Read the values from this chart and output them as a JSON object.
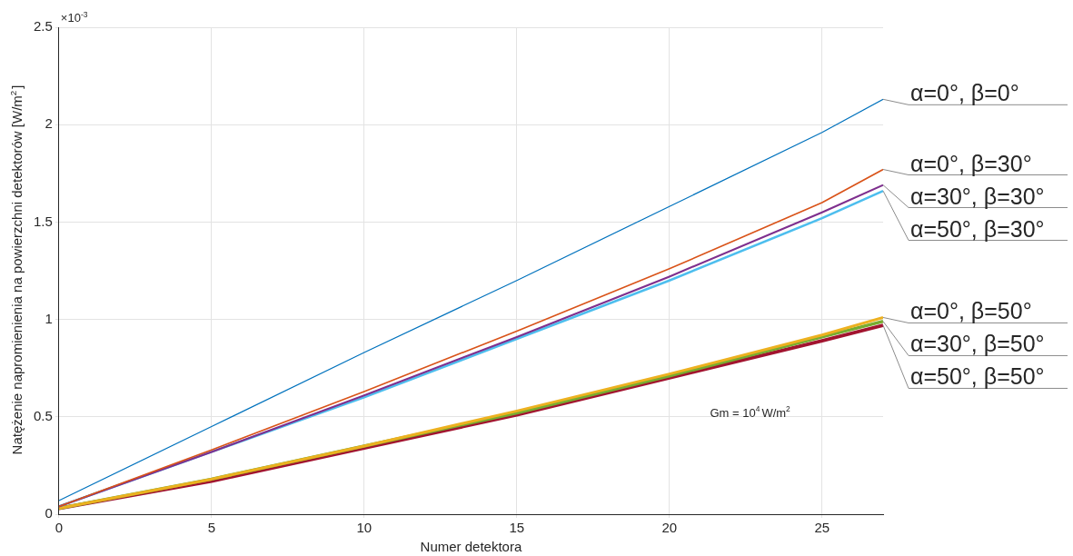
{
  "chart_data": {
    "type": "line",
    "xlabel": "Numer detektora",
    "ylabel": "Natężenie napromienienia na powierzchni detektorów [W/m$^{2}$]",
    "annotations": [
      "×10$^{-3}$",
      "Gm = 10$^{4}$W/m$^{2}$"
    ],
    "x": [
      0,
      5,
      10,
      15,
      20,
      25,
      27
    ],
    "series": [
      {
        "name": "α=0°, β=0°",
        "color": "#0072bd",
        "values": [
          0.07,
          0.45,
          0.83,
          1.2,
          1.58,
          1.96,
          2.13
        ]
      },
      {
        "name": "α=0°, β=30°",
        "color": "#d95319",
        "values": [
          0.04,
          0.33,
          0.63,
          0.94,
          1.26,
          1.6,
          1.77
        ]
      },
      {
        "name": "α=30°, β=30°",
        "color": "#7e2f8e",
        "values": [
          0.04,
          0.32,
          0.61,
          0.91,
          1.22,
          1.55,
          1.69
        ]
      },
      {
        "name": "α=50°, β=30°",
        "color": "#4dbeee",
        "values": [
          0.04,
          0.32,
          0.6,
          0.9,
          1.2,
          1.52,
          1.66
        ]
      },
      {
        "name": "α=0°, β=50°",
        "color": "#edb120",
        "values": [
          0.03,
          0.18,
          0.35,
          0.53,
          0.72,
          0.92,
          1.01
        ]
      },
      {
        "name": "α=30°, β=50°",
        "color": "#77ac30",
        "values": [
          0.03,
          0.18,
          0.35,
          0.52,
          0.71,
          0.91,
          0.99
        ]
      },
      {
        "name": "α=50°, β=50°",
        "color": "#a2142f",
        "values": [
          0.03,
          0.17,
          0.34,
          0.51,
          0.7,
          0.89,
          0.97
        ]
      }
    ],
    "xlim": [
      0,
      27
    ],
    "xticks": [
      0,
      5,
      10,
      15,
      20,
      25
    ],
    "ylim": [
      0,
      2.5
    ],
    "yticks": [
      0,
      0.5,
      1,
      1.5,
      2,
      2.5
    ],
    "grid": true,
    "legend": false,
    "marker": "none",
    "line_style": "solid"
  }
}
